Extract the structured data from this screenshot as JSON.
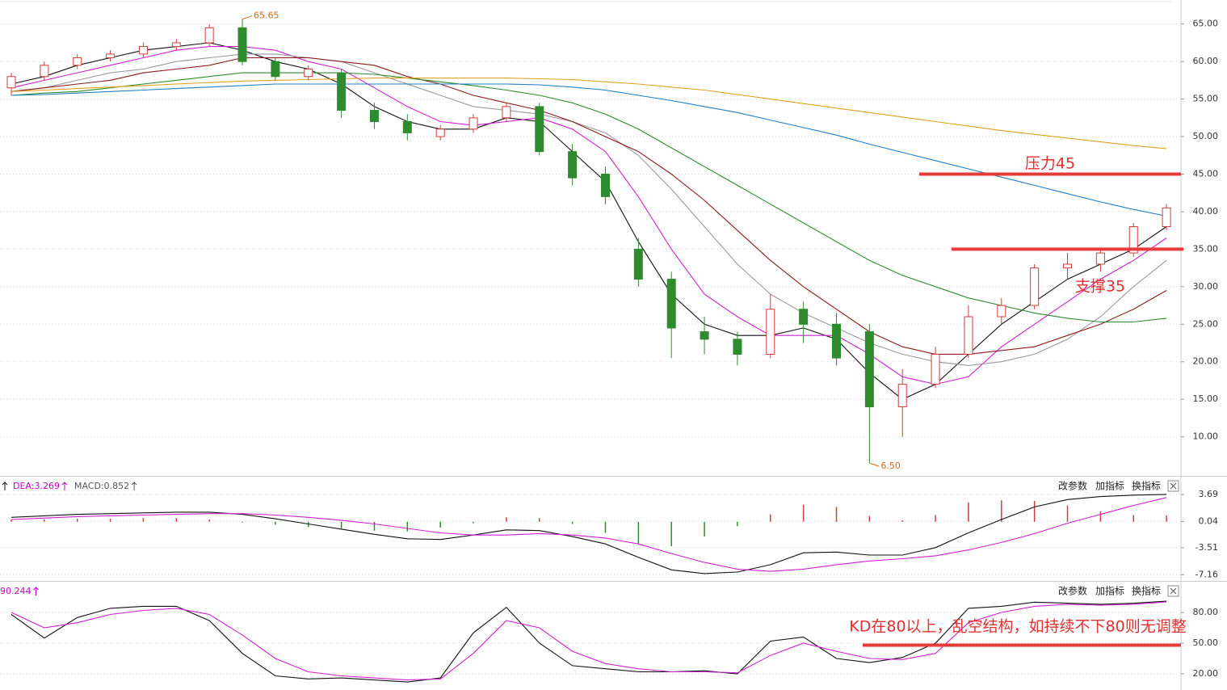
{
  "chart_data": [
    {
      "type": "candlestick",
      "open": [
        56.5,
        58,
        59.5,
        60.5,
        61,
        62,
        62.5,
        64.5,
        60,
        58,
        58.5,
        53.5,
        52,
        50,
        51,
        52.5,
        54,
        48,
        45,
        35,
        31,
        24,
        23,
        21,
        27,
        25,
        24,
        14,
        17,
        21,
        26,
        27.5,
        32.5,
        33,
        34.5,
        38
      ],
      "high": [
        58.5,
        60,
        61,
        61.5,
        62.5,
        63,
        65,
        65.65,
        60.5,
        59.5,
        59,
        54.5,
        53,
        51.5,
        53,
        54.5,
        54.5,
        49,
        46,
        36.5,
        32,
        26,
        24,
        29,
        28,
        26.5,
        25,
        19,
        22,
        27.5,
        28.5,
        33,
        34.5,
        35,
        38.5,
        41
      ],
      "low": [
        55.5,
        57.5,
        59,
        60,
        60.5,
        61.5,
        62,
        59.5,
        57.5,
        57.5,
        52.5,
        51,
        49.5,
        49.5,
        50.5,
        52,
        47.5,
        43.5,
        41,
        30,
        20.5,
        21,
        19.5,
        20.5,
        22.5,
        19.5,
        6.5,
        10,
        16.5,
        20.5,
        25,
        27,
        31,
        32,
        34,
        37.5
      ],
      "close": [
        58,
        59.5,
        60.5,
        61,
        62,
        62.5,
        64.5,
        60,
        58,
        59,
        53.5,
        52,
        50.5,
        51,
        52.5,
        54,
        48,
        44.5,
        42,
        31,
        24.5,
        23,
        21,
        27,
        25,
        20.5,
        14,
        17,
        21,
        26,
        27.5,
        32.5,
        33,
        34.5,
        38,
        40.5
      ],
      "up_color": "#d23c3c",
      "down_color": "#2e8b2e",
      "series": [
        {
          "color": "#111111",
          "values": [
            57,
            58,
            59.5,
            60.5,
            61.5,
            62,
            62.5,
            61.5,
            60,
            59,
            57,
            54,
            52,
            51,
            51,
            52.5,
            52,
            48,
            44,
            36,
            29,
            25,
            23.5,
            23.5,
            24.5,
            23,
            18.5,
            15,
            17,
            21,
            25,
            28,
            31,
            33,
            35,
            38
          ]
        },
        {
          "color": "#d020d0",
          "values": [
            56.5,
            57.5,
            58.5,
            59.5,
            60.5,
            61.5,
            62,
            62,
            61.5,
            60,
            59,
            56.5,
            54,
            52,
            51.5,
            52,
            52.5,
            51,
            48,
            42,
            35,
            29,
            26,
            23.5,
            23.5,
            23.5,
            21,
            18,
            17,
            18,
            22,
            25,
            28,
            31,
            33.5,
            36.5
          ]
        },
        {
          "color": "#999999",
          "values": [
            56,
            56.5,
            57.5,
            58.5,
            59,
            60,
            60.5,
            61,
            61,
            60.5,
            60,
            58.5,
            57,
            55.5,
            54,
            53.5,
            53,
            52,
            50.5,
            47.5,
            43,
            38,
            33,
            29,
            26.5,
            24.5,
            22.5,
            21,
            20,
            19.5,
            20,
            21,
            23,
            26,
            30,
            33.5
          ]
        },
        {
          "color": "#8b1a1a",
          "values": [
            56,
            56.5,
            57,
            57.5,
            58.5,
            59,
            59.5,
            60.5,
            60.5,
            60.5,
            60,
            59.5,
            58,
            57,
            55.5,
            54.5,
            53.5,
            52,
            50,
            48,
            45,
            41.5,
            37.5,
            33.5,
            30,
            27,
            24,
            22,
            21,
            21,
            21.5,
            22,
            23.5,
            25,
            27,
            29.5
          ]
        },
        {
          "color": "#2e8b2e",
          "values": [
            55.5,
            55.8,
            56,
            56.5,
            57,
            57.5,
            58,
            58.5,
            58.5,
            58.5,
            58.5,
            58.3,
            57.8,
            57.3,
            56.8,
            56.2,
            55.5,
            54.5,
            53,
            51,
            48.5,
            46,
            43.5,
            41,
            38.5,
            36,
            33.5,
            31.5,
            30,
            28.5,
            27.5,
            26.5,
            25.8,
            25.3,
            25.3,
            25.8
          ]
        },
        {
          "color": "#1f7fc4",
          "values": [
            55.5,
            55.6,
            55.8,
            56,
            56.2,
            56.4,
            56.6,
            56.8,
            57,
            57,
            57,
            57,
            57,
            57,
            57,
            57,
            56.9,
            56.6,
            56.2,
            55.5,
            54.8,
            54,
            53.2,
            52.2,
            51.2,
            50.2,
            49,
            47.9,
            46.8,
            45.7,
            44.6,
            43.5,
            42.4,
            41.3,
            40.3,
            39.4
          ]
        },
        {
          "color": "#e0a020",
          "values": [
            56,
            56.2,
            56.4,
            56.6,
            56.8,
            57,
            57.2,
            57.4,
            57.5,
            57.6,
            57.7,
            57.8,
            57.8,
            57.8,
            57.8,
            57.8,
            57.7,
            57.6,
            57.3,
            57,
            56.6,
            56.2,
            55.6,
            55,
            54.4,
            53.8,
            53.2,
            52.6,
            52,
            51.4,
            50.8,
            50.3,
            49.8,
            49.3,
            48.8,
            48.4
          ]
        }
      ],
      "high_label": "65.65",
      "low_label": "6.50",
      "ylim": [
        4.9,
        68.2
      ],
      "yticks": [
        {
          "value": 10,
          "label": "10.00"
        },
        {
          "value": 15,
          "label": "15.00"
        },
        {
          "value": 20,
          "label": "20.00"
        },
        {
          "value": 25,
          "label": "25.00"
        },
        {
          "value": 30,
          "label": "30.00"
        },
        {
          "value": 35,
          "label": "35.00"
        },
        {
          "value": 40,
          "label": "40.00"
        },
        {
          "value": 45,
          "label": "45.00"
        },
        {
          "value": 50,
          "label": "50.00"
        },
        {
          "value": 55,
          "label": "55.00"
        },
        {
          "value": 60,
          "label": "60.00"
        },
        {
          "value": 65,
          "label": "65.00"
        }
      ],
      "grid": true,
      "annotations": [
        {
          "label": "压力45",
          "level": 45
        },
        {
          "label": "支撑35",
          "level": 35
        }
      ]
    },
    {
      "type": "macd",
      "header": [
        "DEA:3.269",
        "MACD:0.852"
      ],
      "buttons": [
        "改参数",
        "加指标",
        "换指标"
      ],
      "histogram": [
        0.3,
        0.3,
        0.4,
        0.4,
        0.5,
        0.5,
        0.3,
        -0.1,
        -0.4,
        -0.7,
        -0.9,
        -1.2,
        -1.3,
        -0.8,
        -0.2,
        0.6,
        0.5,
        -0.3,
        -1.5,
        -3.0,
        -3.3,
        -2.0,
        -0.6,
        1.0,
        2.3,
        2.0,
        0.8,
        0.2,
        0.9,
        2.6,
        2.9,
        2.8,
        2.2,
        1.4,
        0.9,
        0.852
      ],
      "up_color": "#d23c3c",
      "down_color": "#2e8b2e",
      "series": [
        {
          "color": "#111111",
          "values": [
            0.6,
            0.8,
            1.0,
            1.1,
            1.2,
            1.3,
            1.3,
            1.0,
            0.4,
            -0.3,
            -1.0,
            -1.7,
            -2.3,
            -2.4,
            -1.8,
            -1.1,
            -1.2,
            -2.0,
            -3.0,
            -4.8,
            -6.5,
            -7.0,
            -6.8,
            -5.8,
            -4.2,
            -4.1,
            -4.5,
            -4.5,
            -3.5,
            -1.5,
            0.3,
            2.0,
            3.0,
            3.4,
            3.6,
            3.7
          ]
        },
        {
          "color": "#d020d0",
          "values": [
            0.3,
            0.5,
            0.7,
            0.8,
            0.9,
            1.0,
            1.1,
            1.1,
            0.9,
            0.6,
            0.2,
            -0.3,
            -0.9,
            -1.5,
            -1.8,
            -1.8,
            -1.6,
            -1.8,
            -2.2,
            -3.0,
            -4.3,
            -5.5,
            -6.4,
            -6.7,
            -6.4,
            -5.8,
            -5.3,
            -5.0,
            -4.6,
            -3.8,
            -2.8,
            -1.6,
            -0.2,
            1.0,
            2.2,
            3.269
          ]
        }
      ],
      "ylim": [
        -7.89,
        6.09
      ],
      "yticks": [
        3.69,
        0.04,
        -3.51,
        -7.16
      ],
      "grid": true
    },
    {
      "type": "line",
      "header": [
        "90.244"
      ],
      "buttons": [
        "改参数",
        "加指标",
        "换指标"
      ],
      "series": [
        {
          "color": "#111111",
          "values": [
            78,
            55,
            75,
            84,
            86,
            86,
            72,
            40,
            18,
            15,
            16,
            14,
            12,
            16,
            60,
            85,
            50,
            28,
            25,
            22,
            22,
            23,
            20,
            52,
            56,
            35,
            31,
            36,
            50,
            84,
            86,
            90,
            89,
            88,
            89,
            91
          ]
        },
        {
          "color": "#d020d0",
          "values": [
            80,
            65,
            70,
            78,
            82,
            84,
            78,
            58,
            35,
            22,
            18,
            16,
            14,
            15,
            40,
            72,
            65,
            42,
            30,
            25,
            22,
            22,
            21,
            38,
            50,
            42,
            35,
            34,
            40,
            70,
            80,
            86,
            88,
            87,
            88,
            90.244
          ]
        }
      ],
      "ylim": [
        4.2,
        110
      ],
      "yticks": [
        {
          "value": 80,
          "label": "80.00"
        },
        {
          "value": 50,
          "label": "50.00"
        },
        {
          "value": 20,
          "label": "20.00"
        }
      ],
      "grid": true,
      "annotations": [
        {
          "label": "KD在80以上，乱空结构，如持续不下80则无调整",
          "level": 48
        }
      ]
    }
  ]
}
